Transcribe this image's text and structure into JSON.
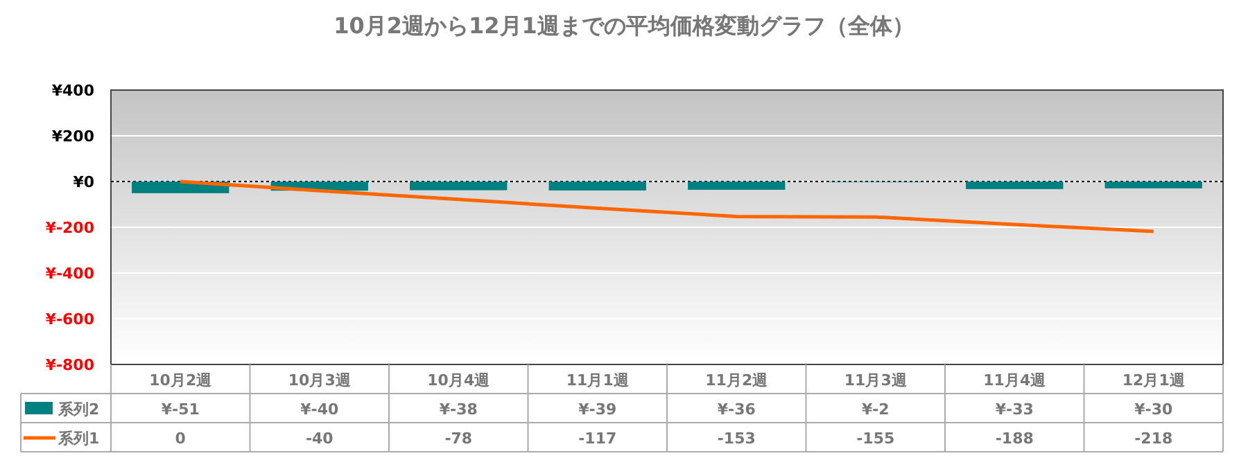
{
  "chart_data": {
    "type": "bar",
    "title": "10月2週から12月1週までの平均価格変動グラフ（全体）",
    "categories": [
      "10月2週",
      "10月3週",
      "10月4週",
      "11月1週",
      "11月2週",
      "11月3週",
      "11月4週",
      "12月1週"
    ],
    "series": [
      {
        "name": "系列2",
        "color": "#008080",
        "values": [
          -51,
          -40,
          -38,
          -39,
          -36,
          -2,
          -33,
          -30
        ],
        "value_labels": [
          "¥-51",
          "¥-40",
          "¥-38",
          "¥-39",
          "¥-36",
          "¥-2",
          "¥-33",
          "¥-30"
        ]
      },
      {
        "name": "系列1",
        "type": "line",
        "color": "#ff6600",
        "values": [
          0,
          -40,
          -78,
          -117,
          -153,
          -155,
          -188,
          -218
        ],
        "value_labels": [
          "0",
          "-40",
          "-78",
          "-117",
          "-153",
          "-155",
          "-188",
          "-218"
        ]
      }
    ],
    "ylim": [
      -800,
      400
    ],
    "yticks": [
      {
        "value": 400,
        "label": "¥400"
      },
      {
        "value": 200,
        "label": "¥200"
      },
      {
        "value": 0,
        "label": "¥0"
      },
      {
        "value": -200,
        "label": "¥-200"
      },
      {
        "value": -400,
        "label": "¥-400"
      },
      {
        "value": -600,
        "label": "¥-600"
      },
      {
        "value": -800,
        "label": "¥-800"
      }
    ],
    "grid": "y",
    "legend": "bottom",
    "marker": "none",
    "line_style": "solid",
    "ref_lines": [
      {
        "axis": "y",
        "value": 0,
        "color": "#000000",
        "line_style": "dotted"
      }
    ]
  }
}
